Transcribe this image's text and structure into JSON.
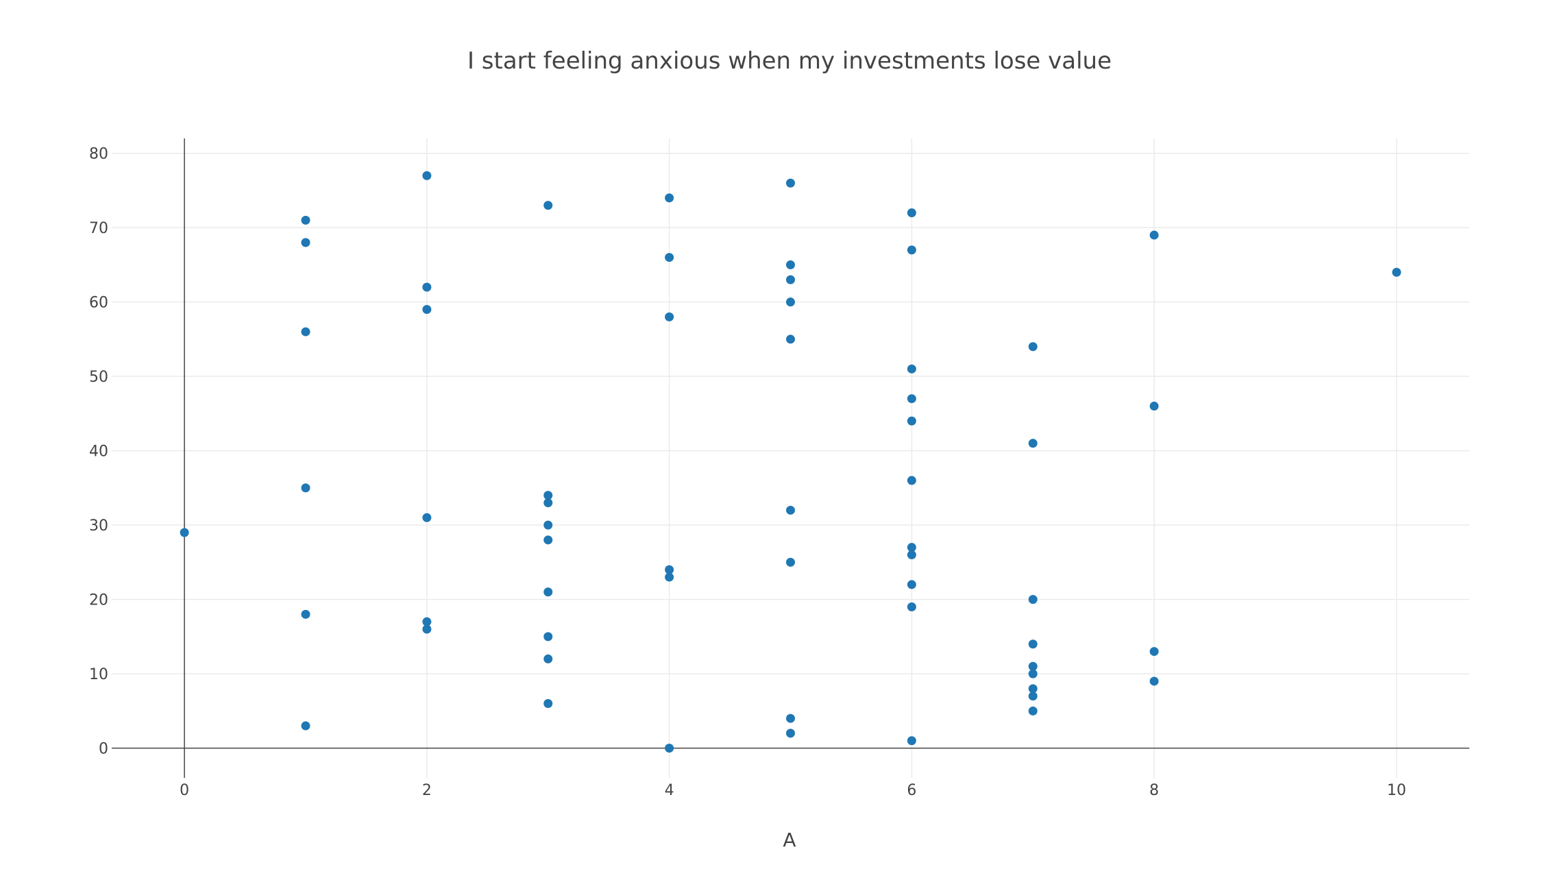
{
  "chart_data": {
    "type": "scatter",
    "title": "I start feeling anxious when my investments lose value",
    "xlabel": "A",
    "ylabel": "",
    "xlim": [
      -0.6,
      10.6
    ],
    "ylim": [
      -4,
      82
    ],
    "xticks": [
      0,
      2,
      4,
      6,
      8,
      10
    ],
    "yticks": [
      0,
      10,
      20,
      30,
      40,
      50,
      60,
      70,
      80
    ],
    "grid": true,
    "legend": "none",
    "marker_color": "#1f77b4",
    "points": [
      [
        0,
        29
      ],
      [
        1,
        71
      ],
      [
        1,
        68
      ],
      [
        1,
        56
      ],
      [
        1,
        35
      ],
      [
        1,
        18
      ],
      [
        1,
        3
      ],
      [
        2,
        77
      ],
      [
        2,
        62
      ],
      [
        2,
        59
      ],
      [
        2,
        31
      ],
      [
        2,
        17
      ],
      [
        2,
        16
      ],
      [
        3,
        73
      ],
      [
        3,
        34
      ],
      [
        3,
        33
      ],
      [
        3,
        30
      ],
      [
        3,
        28
      ],
      [
        3,
        21
      ],
      [
        3,
        15
      ],
      [
        3,
        12
      ],
      [
        3,
        6
      ],
      [
        4,
        74
      ],
      [
        4,
        66
      ],
      [
        4,
        58
      ],
      [
        4,
        24
      ],
      [
        4,
        23
      ],
      [
        4,
        0
      ],
      [
        5,
        76
      ],
      [
        5,
        65
      ],
      [
        5,
        63
      ],
      [
        5,
        60
      ],
      [
        5,
        55
      ],
      [
        5,
        32
      ],
      [
        5,
        25
      ],
      [
        5,
        4
      ],
      [
        5,
        2
      ],
      [
        6,
        72
      ],
      [
        6,
        67
      ],
      [
        6,
        51
      ],
      [
        6,
        47
      ],
      [
        6,
        44
      ],
      [
        6,
        36
      ],
      [
        6,
        27
      ],
      [
        6,
        26
      ],
      [
        6,
        22
      ],
      [
        6,
        19
      ],
      [
        6,
        1
      ],
      [
        7,
        54
      ],
      [
        7,
        41
      ],
      [
        7,
        20
      ],
      [
        7,
        14
      ],
      [
        7,
        11
      ],
      [
        7,
        10
      ],
      [
        7,
        8
      ],
      [
        7,
        7
      ],
      [
        7,
        5
      ],
      [
        8,
        69
      ],
      [
        8,
        46
      ],
      [
        8,
        13
      ],
      [
        8,
        9
      ],
      [
        10,
        64
      ]
    ]
  }
}
